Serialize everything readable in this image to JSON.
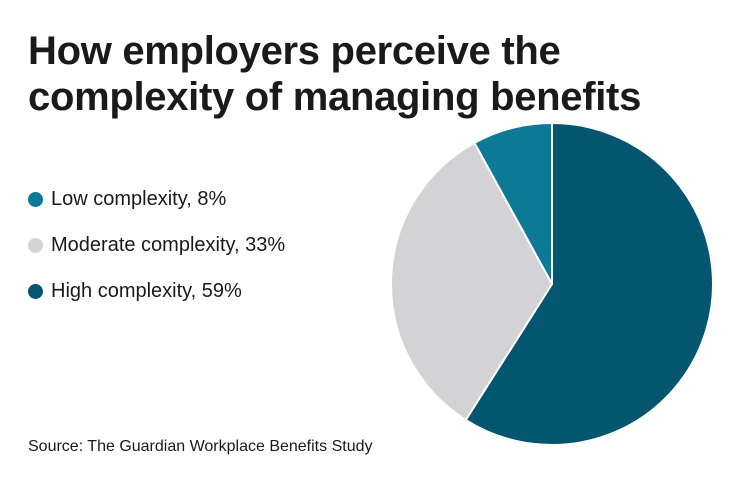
{
  "title": "How employers perceive the complexity of managing benefits",
  "source": "Source: The Guardian Workplace Benefits Study",
  "chart_data": {
    "type": "pie",
    "title": "How employers perceive the complexity of managing benefits",
    "slices": [
      {
        "label": "Low complexity, 8%",
        "category": "Low complexity",
        "value": 8,
        "color": "#0c7a97"
      },
      {
        "label": "Moderate complexity, 33%",
        "category": "Moderate complexity",
        "value": 33,
        "color": "#d3d3d5"
      },
      {
        "label": "High complexity, 59%",
        "category": "High complexity",
        "value": 59,
        "color": "#045670"
      }
    ],
    "legend_position": "left",
    "slice_order": "clockwise from top: High, Moderate, Low"
  }
}
